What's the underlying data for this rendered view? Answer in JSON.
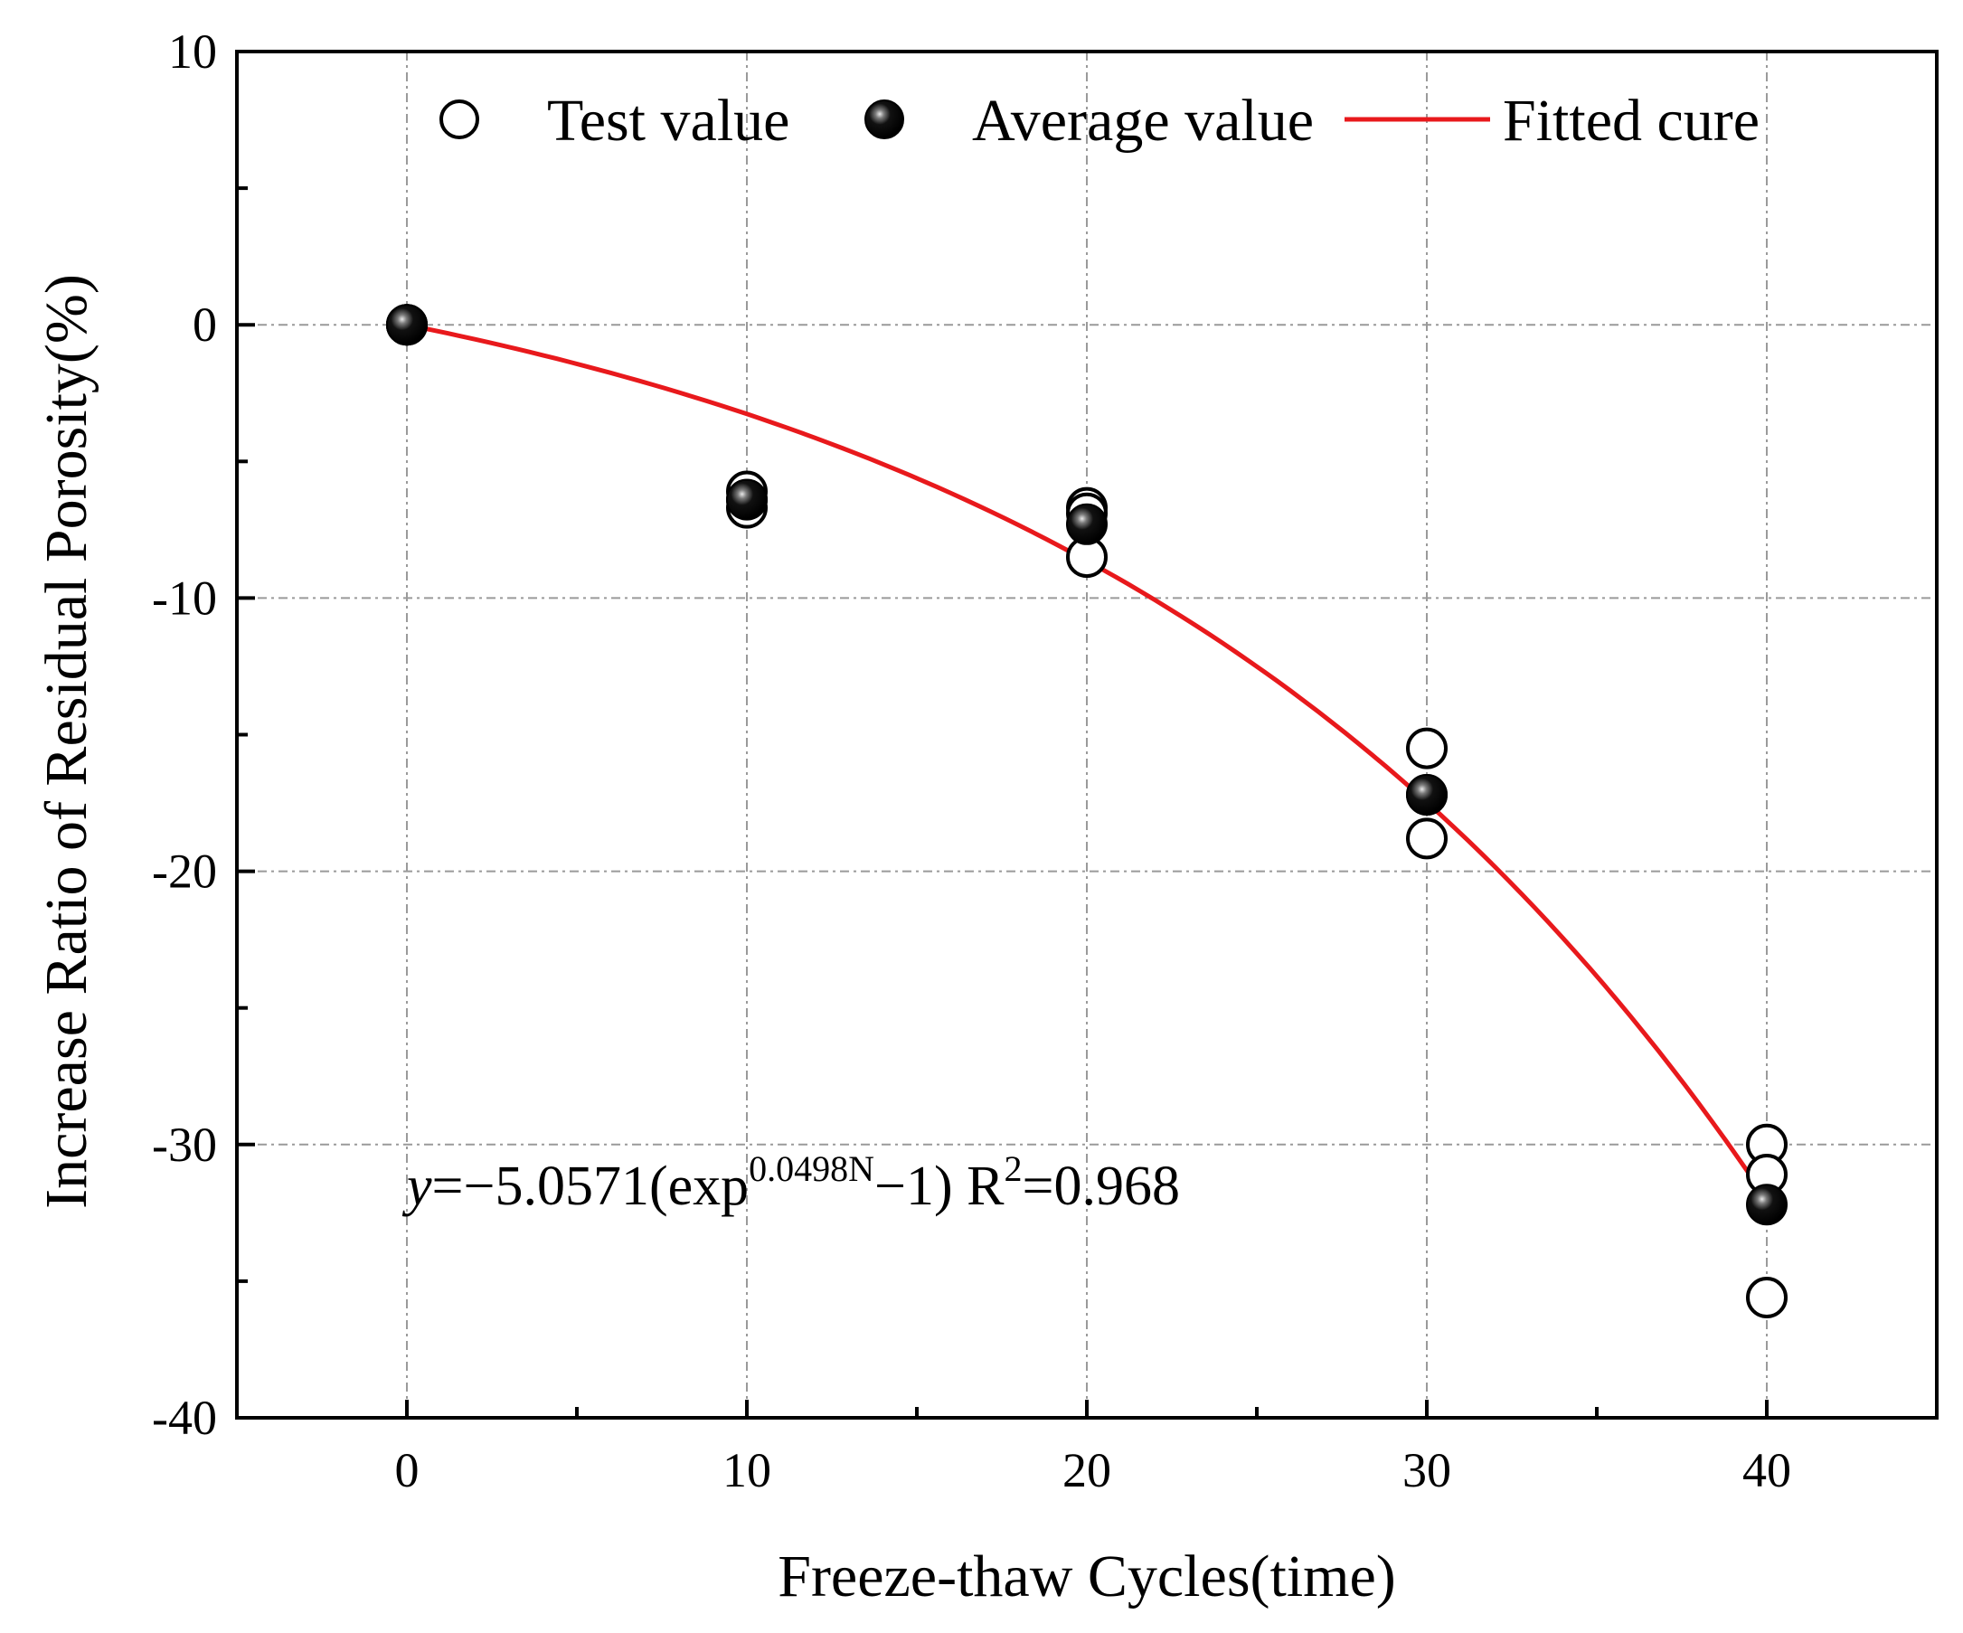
{
  "chart_data": {
    "type": "scatter",
    "xlabel": "Freeze-thaw Cycles(time)",
    "ylabel": "Increase Ratio of Residual Porosity(%)",
    "xlim": [
      -5,
      45
    ],
    "ylim": [
      -40,
      10
    ],
    "xticks": [
      0,
      10,
      20,
      30,
      40
    ],
    "yticks": [
      10,
      0,
      -10,
      -20,
      -30,
      -40
    ],
    "grid": true,
    "legend_position": "top",
    "series": [
      {
        "name": "Test value",
        "marker": "open-circle",
        "points": [
          {
            "x": 0,
            "y": 0
          },
          {
            "x": 0,
            "y": 0
          },
          {
            "x": 0,
            "y": 0
          },
          {
            "x": 10,
            "y": -6.1
          },
          {
            "x": 10,
            "y": -6.4
          },
          {
            "x": 10,
            "y": -6.7
          },
          {
            "x": 20,
            "y": -6.7
          },
          {
            "x": 20,
            "y": -6.9
          },
          {
            "x": 20,
            "y": -8.5
          },
          {
            "x": 30,
            "y": -15.5
          },
          {
            "x": 30,
            "y": -17.2
          },
          {
            "x": 30,
            "y": -18.8
          },
          {
            "x": 40,
            "y": -30.0
          },
          {
            "x": 40,
            "y": -31.1
          },
          {
            "x": 40,
            "y": -35.6
          }
        ]
      },
      {
        "name": "Average value",
        "marker": "filled-sphere",
        "points": [
          {
            "x": 0,
            "y": 0
          },
          {
            "x": 10,
            "y": -6.4
          },
          {
            "x": 20,
            "y": -7.3
          },
          {
            "x": 30,
            "y": -17.2
          },
          {
            "x": 40,
            "y": -32.2
          }
        ]
      },
      {
        "name": "Fitted cure",
        "type": "line",
        "color": "#e8191c",
        "equation": {
          "a": -5.0571,
          "b": 0.0498
        },
        "x_range": [
          0,
          40
        ]
      }
    ],
    "annotation": {
      "y_var": "y",
      "eq_main": "=−5.0571(exp",
      "eq_sup": "0.0498N",
      "eq_tail": "−1)  R",
      "r_sup": "2",
      "r_value": "=0.968"
    }
  }
}
